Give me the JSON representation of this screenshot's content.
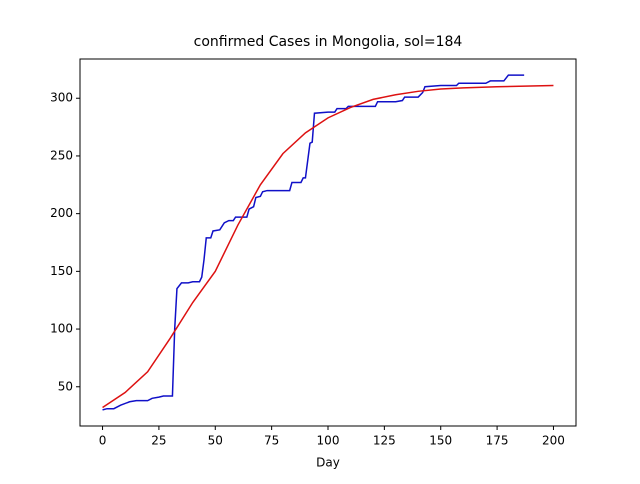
{
  "chart_data": {
    "type": "line",
    "title": "confirmed Cases in Mongolia, sol=184",
    "x_label": "Day",
    "xlim": [
      -10,
      210
    ],
    "xticks": [
      0,
      25,
      50,
      75,
      100,
      125,
      150,
      175,
      200
    ],
    "ylim": [
      16,
      334
    ],
    "yticks": [
      50,
      100,
      150,
      200,
      250,
      300
    ],
    "series": [
      {
        "color": "#1010c8",
        "x": [
          0,
          2,
          5,
          8,
          12,
          15,
          20,
          22,
          25,
          27,
          31,
          32,
          33,
          35,
          38,
          40,
          43,
          44,
          45,
          46,
          48,
          49,
          52,
          54,
          56,
          58,
          59,
          64,
          65,
          67,
          68,
          70,
          71,
          73,
          83,
          84,
          88,
          89,
          90,
          92,
          93,
          94,
          100,
          103,
          104,
          108,
          109,
          121,
          122,
          130,
          133,
          134,
          140,
          142,
          143,
          150,
          157,
          158,
          170,
          172,
          178,
          180,
          187
        ],
        "values": [
          30,
          31,
          31,
          34,
          37,
          38,
          38,
          40,
          41,
          42,
          42,
          100,
          135,
          140,
          140,
          141,
          141,
          145,
          160,
          179,
          179,
          185,
          186,
          192,
          194,
          194,
          197,
          197,
          204,
          206,
          214,
          215,
          219,
          220,
          220,
          227,
          227,
          231,
          231,
          261,
          262,
          287,
          288,
          288,
          291,
          291,
          293,
          293,
          297,
          297,
          298,
          301,
          301,
          305,
          310,
          311,
          311,
          313,
          313,
          315,
          315,
          320,
          320
        ]
      },
      {
        "color": "#dd1111",
        "x": [
          0,
          10,
          20,
          30,
          40,
          50,
          60,
          70,
          80,
          90,
          100,
          110,
          120,
          130,
          140,
          150,
          160,
          175,
          200
        ],
        "values": [
          32,
          45,
          63,
          92,
          123,
          150,
          190,
          225,
          252,
          270,
          283,
          292,
          299,
          303,
          306,
          308,
          309,
          310,
          311
        ]
      }
    ]
  }
}
